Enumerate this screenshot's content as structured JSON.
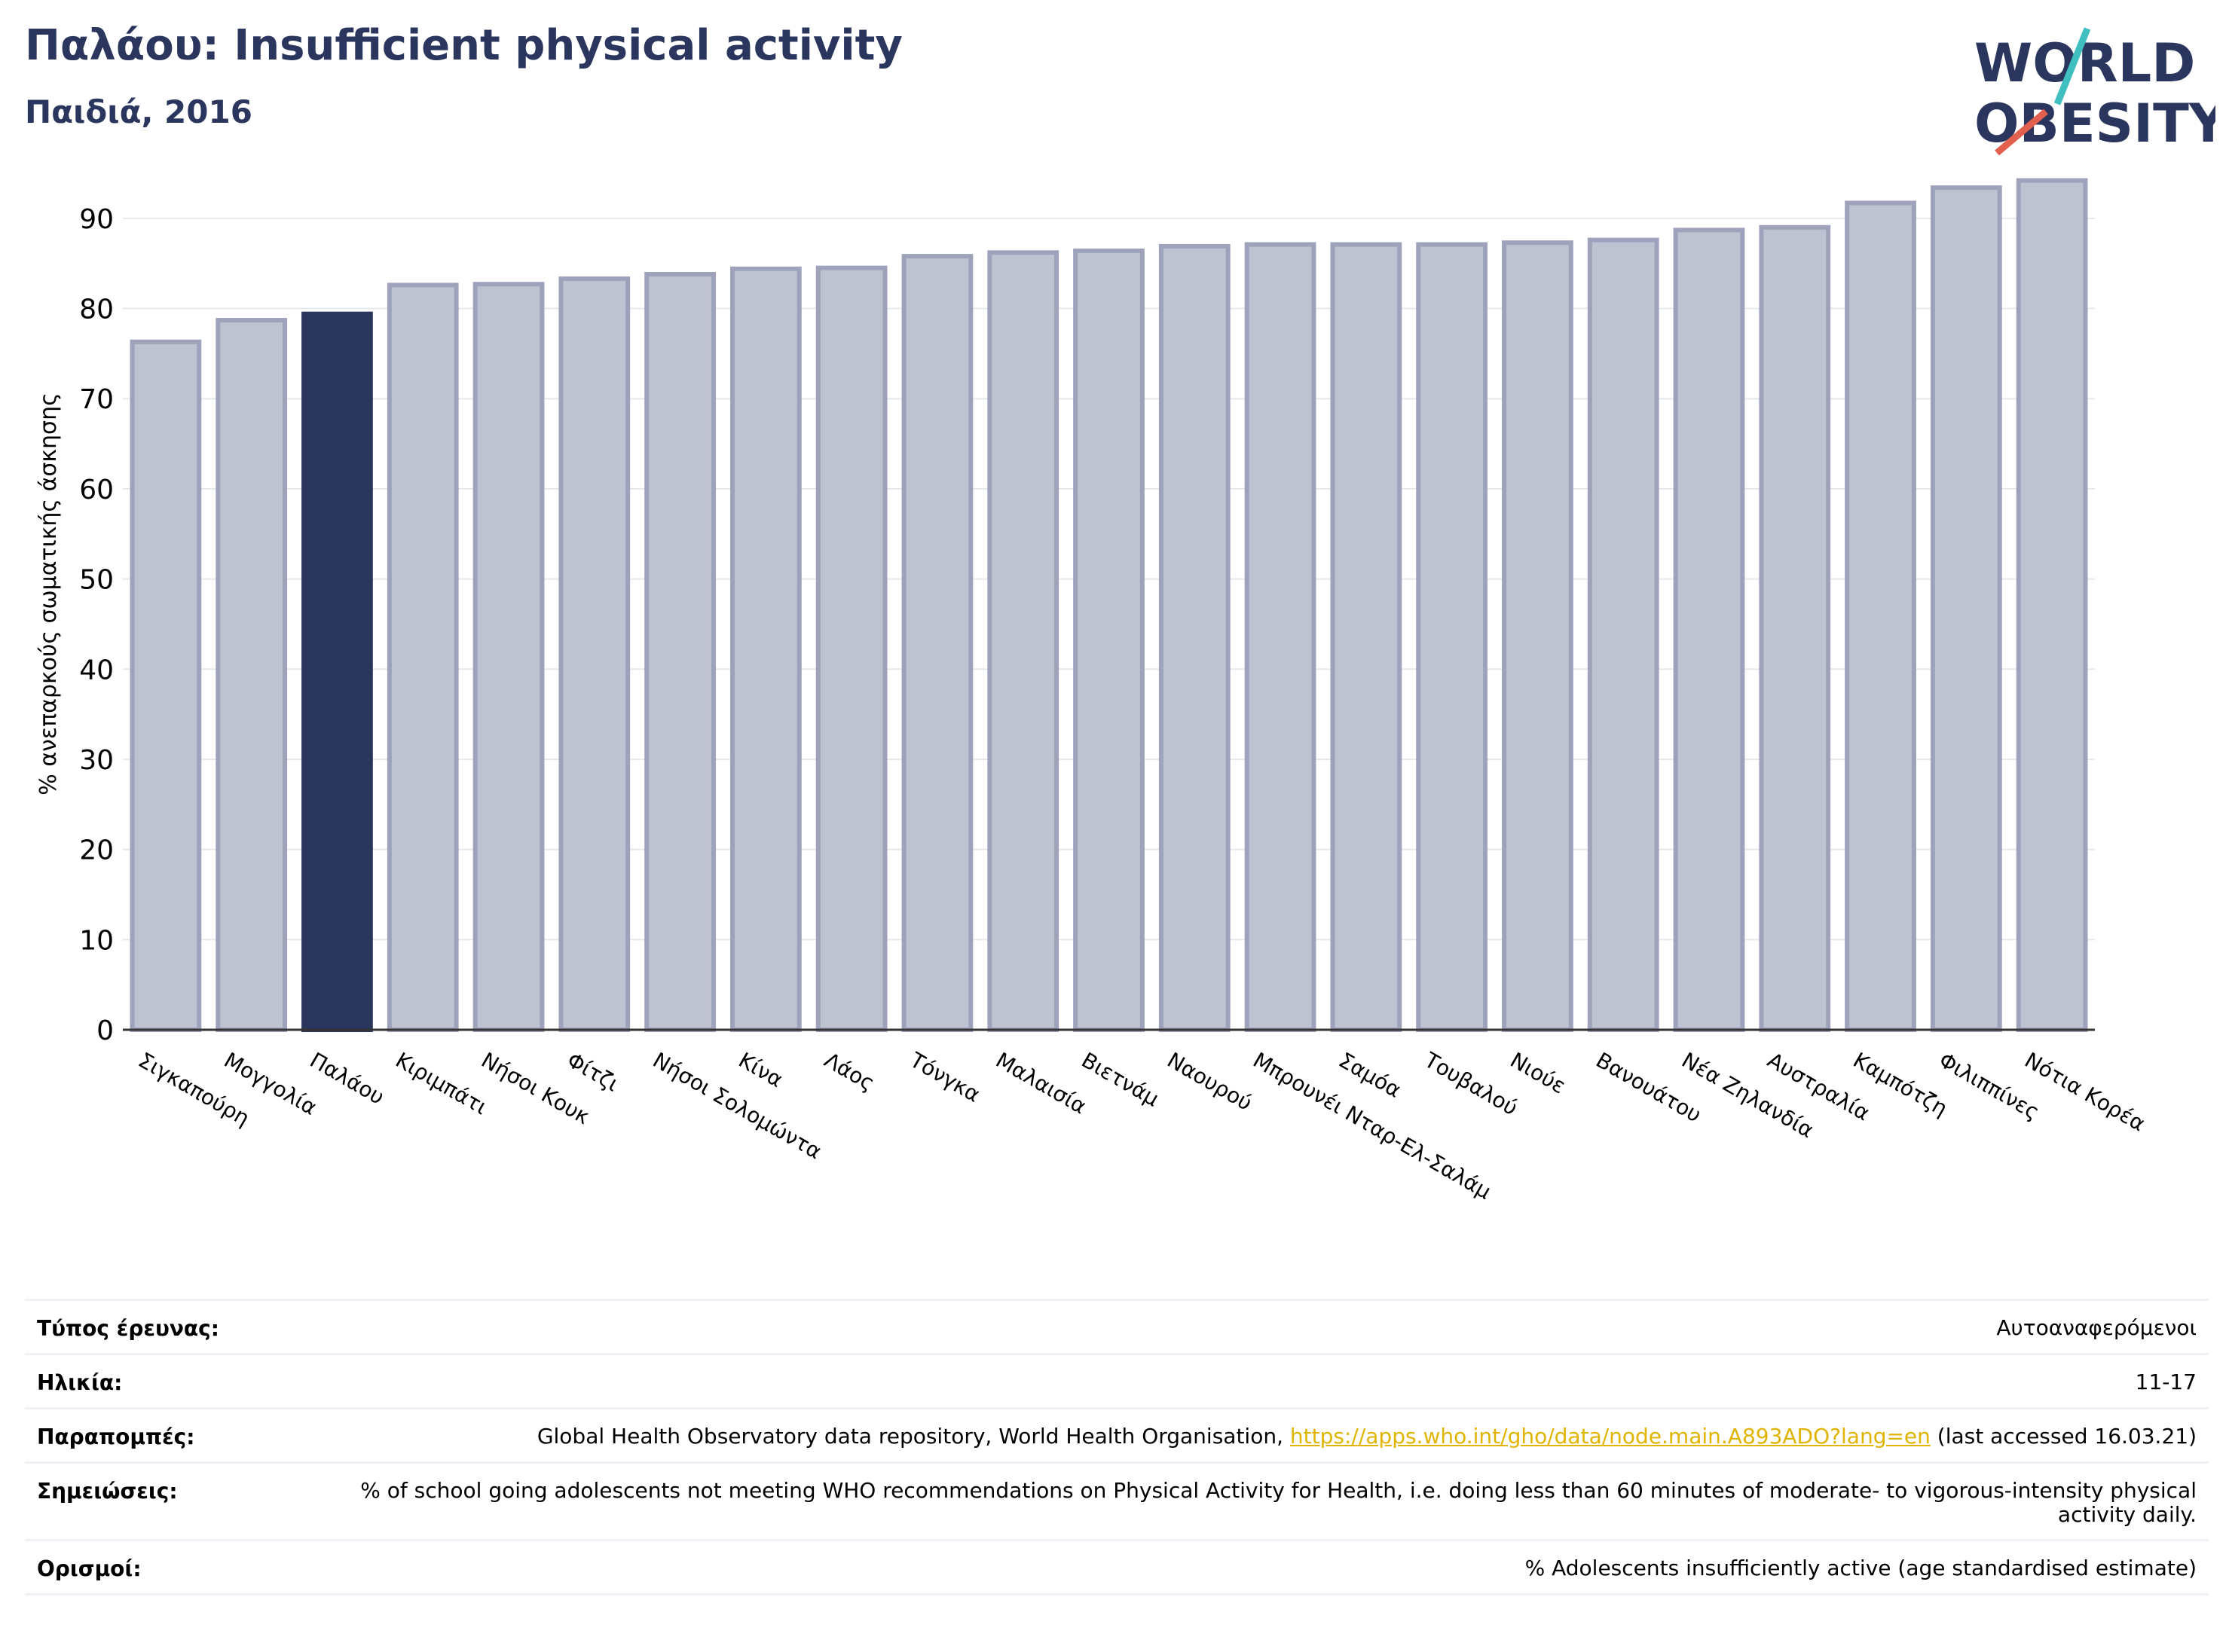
{
  "header": {
    "title": "Παλάου: Insufficient physical activity",
    "subtitle": "Παιδιά, 2016"
  },
  "logo": {
    "line1": "WORLD",
    "line2": "OBESITY",
    "text_color": "#2b365e",
    "accent_teal": "#3fbfbf",
    "accent_red": "#e4604e"
  },
  "chart_data": {
    "type": "bar",
    "ylabel": "% ανεπαρκούς σωματικής άσκησης",
    "xlabel": "",
    "ylim": [
      0,
      96
    ],
    "yticks": [
      0,
      10,
      20,
      30,
      40,
      50,
      60,
      70,
      80,
      90
    ],
    "grid": true,
    "highlight": "Παλάου",
    "bar_color": "#bfc2d0",
    "bar_edge_color": "#9ea2bb",
    "highlight_color": "#2b365e",
    "categories": [
      "Σιγκαπούρη",
      "Μογγολία",
      "Παλάου",
      "Κιριμπάτι",
      "Νήσοι Κουκ",
      "Φίτζι",
      "Νήσοι Σολομώντα",
      "Κίνα",
      "Λάος",
      "Τόνγκα",
      "Μαλαισία",
      "Βιετνάμ",
      "Ναουρού",
      "Μπρουνέι Νταρ-Ελ-Σαλάμ",
      "Σαμόα",
      "Τουβαλού",
      "Νιούε",
      "Βανουάτου",
      "Νέα Ζηλανδία",
      "Αυστραλία",
      "Καμπότζη",
      "Φιλιππίνες",
      "Νότια Κορέα"
    ],
    "values": [
      76.3,
      78.7,
      79.4,
      82.6,
      82.7,
      83.3,
      83.8,
      84.4,
      84.5,
      85.8,
      86.2,
      86.4,
      86.9,
      87.1,
      87.1,
      87.1,
      87.3,
      87.6,
      88.7,
      89.0,
      91.7,
      93.4,
      94.2
    ]
  },
  "info": {
    "rows": [
      {
        "label": "Τύπος έρευνας:",
        "value": "Αυτοαναφερόμενοι"
      },
      {
        "label": "Ηλικία:",
        "value": "11-17"
      },
      {
        "label": "Παραπομπές:",
        "value_pre": "Global Health Observatory data repository, World Health Organisation, ",
        "link": "https://apps.who.int/gho/data/node.main.A893ADO?lang=en",
        "value_post": " (last accessed 16.03.21)"
      },
      {
        "label": "Σημειώσεις:",
        "value": "% of school going adolescents not meeting WHO recommendations on Physical Activity for Health, i.e. doing less than 60 minutes of moderate- to vigorous-intensity physical activity daily."
      },
      {
        "label": "Ορισμοί:",
        "value": "% Adolescents insufficiently active (age standardised estimate)"
      }
    ]
  }
}
